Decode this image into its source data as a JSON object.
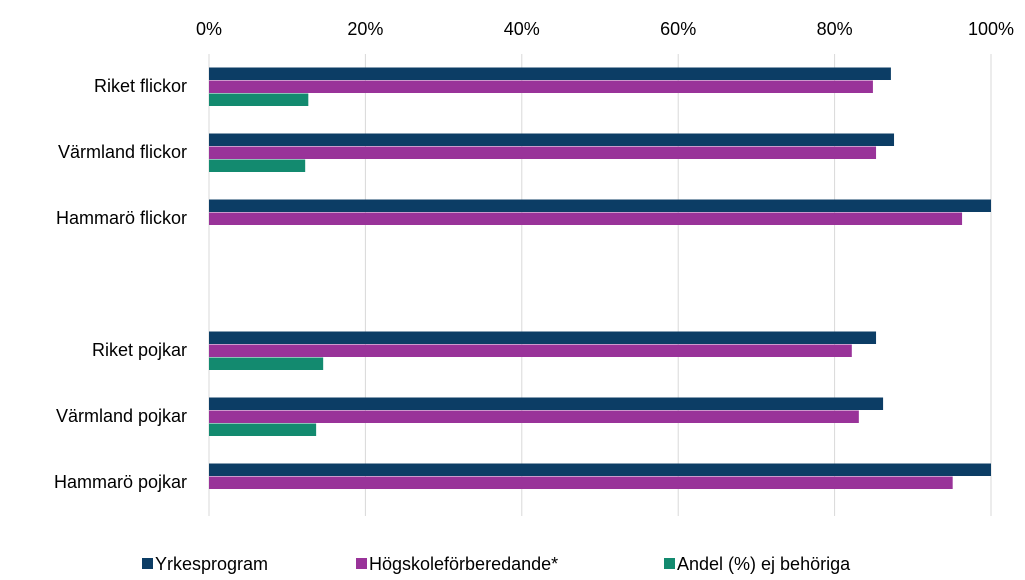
{
  "chart_data": {
    "type": "hbar",
    "categories": [
      "Riket flickor",
      "Värmland flickor",
      "Hammarö flickor",
      null,
      "Riket pojkar",
      "Värmland pojkar",
      "Hammarö pojkar"
    ],
    "series": [
      {
        "name": "Yrkesprogram",
        "color": "#0c3d65",
        "values": [
          87.2,
          87.6,
          100,
          null,
          85.3,
          86.2,
          100
        ]
      },
      {
        "name": "Högskoleförberedande*",
        "color": "#993399",
        "values": [
          84.9,
          85.3,
          96.3,
          null,
          82.2,
          83.1,
          95.1
        ]
      },
      {
        "name": "Andel (%) ej behöriga",
        "color": "#138a6f",
        "values": [
          12.7,
          12.3,
          null,
          null,
          14.6,
          13.7,
          null
        ]
      }
    ],
    "xlim": [
      0,
      100
    ],
    "xticks": [
      {
        "value": 0,
        "label": "0%"
      },
      {
        "value": 20,
        "label": "20%"
      },
      {
        "value": 40,
        "label": "40%"
      },
      {
        "value": 60,
        "label": "60%"
      },
      {
        "value": 80,
        "label": "80%"
      },
      {
        "value": 100,
        "label": "100%"
      }
    ],
    "grid": true,
    "legend": "bottom"
  }
}
